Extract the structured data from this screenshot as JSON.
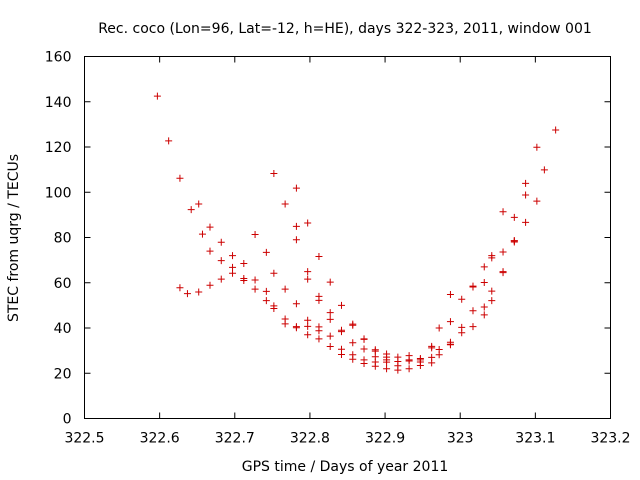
{
  "chart_data": {
    "type": "scatter",
    "title": "Rec. coco (Lon=96, Lat=-12, h=HE), days 322-323, 2011, window 001",
    "xlabel": "GPS time / Days of year 2011",
    "ylabel": "STEC from uqrg / TECUs",
    "xlim": [
      322.5,
      323.2
    ],
    "ylim": [
      0,
      160
    ],
    "xticks": [
      "322.5",
      "322.6",
      "322.7",
      "322.8",
      "322.9",
      "323",
      "323.1",
      "323.2"
    ],
    "yticks": [
      "0",
      "20",
      "40",
      "60",
      "80",
      "100",
      "120",
      "140",
      "160"
    ],
    "grid": false,
    "marker": "+",
    "color": "#cc0000",
    "series": [
      {
        "name": "STEC",
        "points": [
          [
            322.597,
            142.5
          ],
          [
            322.612,
            122.7
          ],
          [
            322.627,
            106.2
          ],
          [
            322.642,
            92.3
          ],
          [
            322.657,
            81.5
          ],
          [
            322.667,
            74.0
          ],
          [
            322.682,
            69.8
          ],
          [
            322.697,
            64.2
          ],
          [
            322.712,
            61.9
          ],
          [
            322.727,
            57.2
          ],
          [
            322.742,
            52.1
          ],
          [
            322.752,
            48.6
          ],
          [
            322.767,
            44.0
          ],
          [
            322.782,
            40.1
          ],
          [
            322.797,
            37.0
          ],
          [
            322.812,
            35.2
          ],
          [
            322.827,
            31.8
          ],
          [
            322.842,
            28.3
          ],
          [
            322.857,
            26.2
          ],
          [
            322.872,
            24.3
          ],
          [
            322.887,
            23.1
          ],
          [
            322.902,
            22.0
          ],
          [
            322.917,
            21.4
          ],
          [
            322.932,
            22.0
          ],
          [
            322.947,
            23.4
          ],
          [
            322.962,
            24.6
          ],
          [
            322.972,
            28.2
          ],
          [
            322.987,
            32.8
          ],
          [
            323.002,
            37.9
          ],
          [
            323.017,
            40.6
          ],
          [
            323.032,
            45.8
          ],
          [
            323.042,
            52.1
          ],
          [
            323.057,
            64.5
          ],
          [
            323.072,
            78.0
          ],
          [
            323.087,
            86.7
          ],
          [
            323.102,
            96.1
          ],
          [
            323.112,
            109.9
          ],
          [
            323.127,
            127.5
          ],
          [
            322.627,
            57.8
          ],
          [
            322.637,
            55.2
          ],
          [
            322.652,
            55.9
          ],
          [
            322.667,
            58.9
          ],
          [
            322.682,
            61.6
          ],
          [
            322.697,
            66.8
          ],
          [
            322.712,
            61.0
          ],
          [
            322.727,
            61.2
          ],
          [
            322.742,
            56.2
          ],
          [
            322.752,
            49.8
          ],
          [
            322.767,
            41.8
          ],
          [
            322.782,
            40.6
          ],
          [
            322.797,
            40.7
          ],
          [
            322.812,
            38.8
          ],
          [
            322.827,
            36.4
          ],
          [
            322.842,
            30.6
          ],
          [
            322.857,
            28.2
          ],
          [
            322.872,
            25.9
          ],
          [
            322.887,
            25.0
          ],
          [
            322.902,
            24.9
          ],
          [
            322.917,
            23.3
          ],
          [
            322.932,
            25.4
          ],
          [
            322.947,
            25.9
          ],
          [
            322.962,
            27.0
          ],
          [
            322.972,
            30.5
          ],
          [
            322.987,
            33.7
          ],
          [
            323.002,
            40.3
          ],
          [
            323.017,
            47.6
          ],
          [
            323.032,
            49.3
          ],
          [
            323.042,
            56.3
          ],
          [
            323.057,
            64.9
          ],
          [
            323.072,
            78.6
          ],
          [
            323.087,
            98.8
          ],
          [
            323.102,
            119.9
          ],
          [
            322.652,
            94.8
          ],
          [
            322.667,
            84.6
          ],
          [
            322.682,
            77.9
          ],
          [
            322.697,
            72.0
          ],
          [
            322.712,
            68.5
          ],
          [
            322.727,
            81.3
          ],
          [
            322.742,
            73.4
          ],
          [
            322.752,
            64.2
          ],
          [
            322.767,
            57.2
          ],
          [
            322.782,
            50.7
          ],
          [
            322.797,
            43.4
          ],
          [
            322.812,
            40.5
          ],
          [
            322.827,
            43.8
          ],
          [
            322.842,
            39.0
          ],
          [
            322.857,
            41.7
          ],
          [
            322.872,
            35.0
          ],
          [
            322.887,
            30.4
          ],
          [
            322.902,
            28.5
          ],
          [
            322.917,
            25.2
          ],
          [
            322.932,
            25.9
          ],
          [
            322.947,
            25.0
          ],
          [
            322.962,
            31.9
          ],
          [
            322.972,
            40.0
          ],
          [
            322.987,
            42.8
          ],
          [
            323.002,
            52.7
          ],
          [
            323.017,
            58.1
          ],
          [
            323.032,
            60.1
          ],
          [
            323.042,
            72.0
          ],
          [
            323.057,
            73.6
          ],
          [
            323.072,
            88.9
          ],
          [
            323.087,
            103.9
          ],
          [
            322.752,
            108.3
          ],
          [
            322.767,
            94.8
          ],
          [
            322.782,
            101.8
          ],
          [
            322.782,
            84.9
          ],
          [
            322.782,
            79.0
          ],
          [
            322.797,
            86.4
          ],
          [
            322.797,
            64.9
          ],
          [
            322.797,
            61.6
          ],
          [
            322.812,
            71.6
          ],
          [
            322.812,
            54.0
          ],
          [
            322.812,
            52.2
          ],
          [
            322.827,
            60.3
          ],
          [
            322.827,
            46.8
          ],
          [
            322.842,
            50.0
          ],
          [
            322.842,
            38.4
          ],
          [
            322.857,
            41.2
          ],
          [
            322.857,
            33.5
          ],
          [
            322.872,
            35.2
          ],
          [
            322.872,
            30.7
          ],
          [
            322.887,
            29.8
          ],
          [
            322.887,
            27.3
          ],
          [
            322.902,
            27.1
          ],
          [
            322.902,
            25.9
          ],
          [
            322.917,
            27.1
          ],
          [
            322.932,
            27.8
          ],
          [
            322.947,
            26.5
          ],
          [
            322.962,
            31.2
          ],
          [
            322.987,
            32.6
          ],
          [
            322.987,
            54.8
          ],
          [
            323.017,
            58.5
          ],
          [
            323.032,
            67.0
          ],
          [
            323.042,
            71.0
          ],
          [
            323.057,
            91.4
          ],
          [
            323.072,
            78.5
          ]
        ]
      }
    ]
  }
}
